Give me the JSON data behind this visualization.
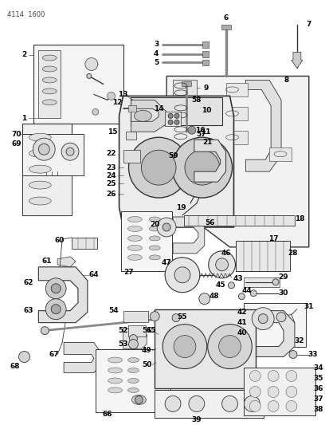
{
  "part_code": "4114  1600",
  "bg_color": "#ffffff",
  "lc": "#333333",
  "fig_width": 4.08,
  "fig_height": 5.33,
  "dpi": 100
}
